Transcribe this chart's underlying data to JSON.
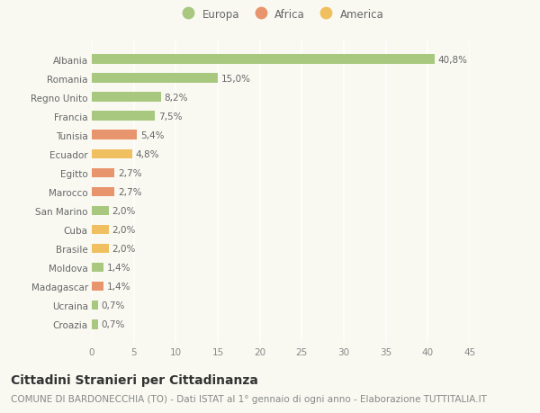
{
  "categories": [
    "Albania",
    "Romania",
    "Regno Unito",
    "Francia",
    "Tunisia",
    "Ecuador",
    "Egitto",
    "Marocco",
    "San Marino",
    "Cuba",
    "Brasile",
    "Moldova",
    "Madagascar",
    "Ucraina",
    "Croazia"
  ],
  "values": [
    40.8,
    15.0,
    8.2,
    7.5,
    5.4,
    4.8,
    2.7,
    2.7,
    2.0,
    2.0,
    2.0,
    1.4,
    1.4,
    0.7,
    0.7
  ],
  "labels": [
    "40,8%",
    "15,0%",
    "8,2%",
    "7,5%",
    "5,4%",
    "4,8%",
    "2,7%",
    "2,7%",
    "2,0%",
    "2,0%",
    "2,0%",
    "1,4%",
    "1,4%",
    "0,7%",
    "0,7%"
  ],
  "continents": [
    "Europa",
    "Europa",
    "Europa",
    "Europa",
    "Africa",
    "America",
    "Africa",
    "Africa",
    "Europa",
    "America",
    "America",
    "Europa",
    "Africa",
    "Europa",
    "Europa"
  ],
  "colors": {
    "Europa": "#a8c880",
    "Africa": "#e8956d",
    "America": "#f0c060"
  },
  "legend_order": [
    "Europa",
    "Africa",
    "America"
  ],
  "xlim": [
    0,
    45
  ],
  "xticks": [
    0,
    5,
    10,
    15,
    20,
    25,
    30,
    35,
    40,
    45
  ],
  "title": "Cittadini Stranieri per Cittadinanza",
  "subtitle": "COMUNE DI BARDONECCHIA (TO) - Dati ISTAT al 1° gennaio di ogni anno - Elaborazione TUTTITALIA.IT",
  "background_color": "#f9f9f2",
  "grid_color": "#ffffff",
  "bar_height": 0.5,
  "title_fontsize": 10,
  "subtitle_fontsize": 7.5,
  "label_fontsize": 7.5,
  "tick_fontsize": 7.5,
  "legend_fontsize": 8.5
}
